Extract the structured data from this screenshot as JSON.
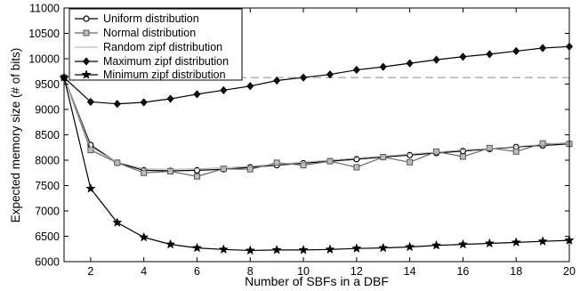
{
  "chart_data": {
    "type": "line",
    "title": "",
    "xlabel": "Number of SBFs in a DBF",
    "ylabel": "Expected memory size (# of bits)",
    "xlim": [
      1,
      20
    ],
    "ylim": [
      6000,
      11000
    ],
    "xticks": [
      2,
      4,
      6,
      8,
      10,
      12,
      14,
      16,
      18,
      20
    ],
    "yticks": [
      6000,
      6500,
      7000,
      7500,
      8000,
      8500,
      9000,
      9500,
      10000,
      10500,
      11000
    ],
    "grid": false,
    "legend_position": "top-left",
    "reference_line": {
      "y": 9630,
      "style": "dashed"
    },
    "x": [
      1,
      2,
      3,
      4,
      5,
      6,
      7,
      8,
      9,
      10,
      11,
      12,
      13,
      14,
      15,
      16,
      17,
      18,
      19,
      20
    ],
    "series": [
      {
        "name": "Uniform distribution",
        "marker": "circle",
        "values": [
          9630,
          8300,
          7950,
          7800,
          7790,
          7800,
          7820,
          7860,
          7900,
          7940,
          7980,
          8020,
          8060,
          8100,
          8140,
          8180,
          8220,
          8260,
          8290,
          8320
        ]
      },
      {
        "name": "Normal distribution",
        "marker": "square",
        "values": [
          9630,
          8200,
          7950,
          7750,
          7780,
          7680,
          7830,
          7820,
          7950,
          7900,
          7980,
          7860,
          8060,
          7960,
          8170,
          8070,
          8240,
          8170,
          8330,
          8320
        ]
      },
      {
        "name": "Random zipf distribution",
        "marker": "none",
        "values": [
          9630,
          8260,
          7960,
          7830,
          7820,
          7830,
          7850,
          7880,
          7920,
          7960,
          8000,
          8040,
          8080,
          8120,
          8160,
          8200,
          8230,
          8270,
          8310,
          8350
        ]
      },
      {
        "name": "Maximum zipf distribution",
        "marker": "diamond",
        "values": [
          9630,
          9150,
          9110,
          9140,
          9210,
          9300,
          9380,
          9460,
          9570,
          9630,
          9690,
          9780,
          9840,
          9910,
          9980,
          10040,
          10090,
          10150,
          10210,
          10240
        ]
      },
      {
        "name": "Minimum zipf distribution",
        "marker": "star",
        "values": [
          9630,
          7440,
          6770,
          6480,
          6340,
          6270,
          6240,
          6220,
          6230,
          6230,
          6240,
          6260,
          6270,
          6290,
          6320,
          6340,
          6360,
          6380,
          6400,
          6420
        ]
      }
    ]
  }
}
